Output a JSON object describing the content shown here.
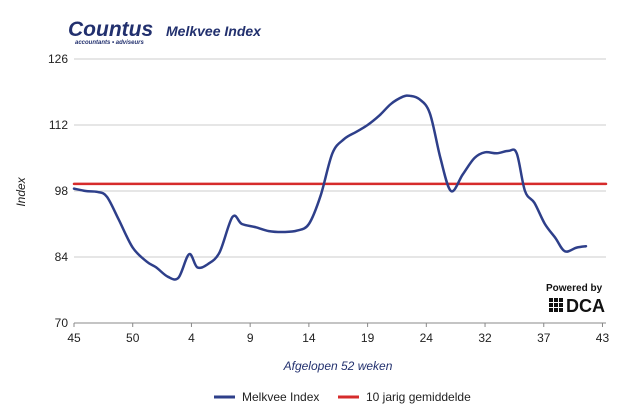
{
  "brand": {
    "name": "Countus",
    "tagline": "accountants • adviseurs"
  },
  "powered": {
    "label": "Powered by",
    "logo": "DCA"
  },
  "colors": {
    "index_line": "#2e3f8a",
    "average_line": "#d62b2b",
    "grid": "#cccccc",
    "brand": "#22306e"
  },
  "chart_data": {
    "type": "line",
    "title": "Melkvee Index",
    "xlabel": "Afgelopen 52 weken",
    "ylabel": "Index",
    "ylim": [
      70,
      126
    ],
    "yticks": [
      70,
      84,
      98,
      112,
      126
    ],
    "xticks": [
      {
        "label": "45",
        "week": 0
      },
      {
        "label": "50",
        "week": 5
      },
      {
        "label": "4",
        "week": 10
      },
      {
        "label": "9",
        "week": 15
      },
      {
        "label": "14",
        "week": 20
      },
      {
        "label": "19",
        "week": 25
      },
      {
        "label": "24",
        "week": 30
      },
      {
        "label": "32",
        "week": 35
      },
      {
        "label": "37",
        "week": 40
      },
      {
        "label": "43",
        "week": 45
      }
    ],
    "grid": true,
    "legend_position": "bottom",
    "series": [
      {
        "name": "Melkvee Index",
        "points": [
          [
            0,
            98.5
          ],
          [
            1,
            98.0
          ],
          [
            2,
            97.8
          ],
          [
            2.8,
            96.8
          ],
          [
            3.8,
            92.0
          ],
          [
            5,
            86.0
          ],
          [
            6.2,
            83.0
          ],
          [
            7,
            81.8
          ],
          [
            8,
            79.8
          ],
          [
            8.9,
            79.6
          ],
          [
            9.8,
            84.6
          ],
          [
            10.5,
            81.8
          ],
          [
            11.4,
            82.5
          ],
          [
            12.4,
            85.0
          ],
          [
            13.5,
            92.5
          ],
          [
            14.3,
            91.0
          ],
          [
            15.5,
            90.3
          ],
          [
            16.6,
            89.5
          ],
          [
            17.9,
            89.3
          ],
          [
            19,
            89.6
          ],
          [
            20,
            91.0
          ],
          [
            21,
            97.0
          ],
          [
            22,
            106.0
          ],
          [
            23,
            109.0
          ],
          [
            24,
            110.5
          ],
          [
            25,
            112.0
          ],
          [
            26,
            114.0
          ],
          [
            27,
            116.5
          ],
          [
            28,
            118.0
          ],
          [
            28.6,
            118.2
          ],
          [
            29.4,
            117.5
          ],
          [
            30.3,
            114.5
          ],
          [
            31.2,
            105.0
          ],
          [
            32.1,
            98.0
          ],
          [
            33.1,
            101.5
          ],
          [
            34.1,
            105.0
          ],
          [
            35,
            106.2
          ],
          [
            36,
            106.0
          ],
          [
            37,
            106.5
          ],
          [
            37.7,
            106.0
          ],
          [
            38.4,
            98.0
          ],
          [
            39.2,
            95.5
          ],
          [
            40.1,
            91.0
          ],
          [
            41,
            88.0
          ],
          [
            41.8,
            85.2
          ],
          [
            42.8,
            86.0
          ],
          [
            43.6,
            86.3
          ]
        ]
      },
      {
        "name": "10 jarig gemiddelde",
        "points": [
          [
            0,
            99.5
          ],
          [
            45.3,
            99.5
          ]
        ]
      }
    ]
  }
}
